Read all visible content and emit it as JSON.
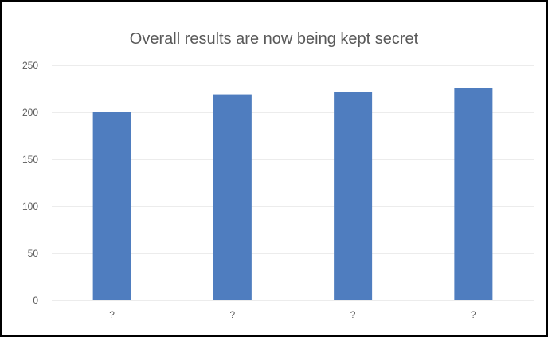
{
  "chart_data": {
    "type": "bar",
    "title": "Overall results are now being kept secret",
    "xlabel": "",
    "ylabel": "",
    "categories": [
      "?",
      "?",
      "?",
      "?"
    ],
    "values": [
      200,
      219,
      222,
      226
    ],
    "ylim": [
      0,
      250
    ],
    "yticks": [
      "0",
      "50",
      "100",
      "150",
      "200",
      "250"
    ],
    "grid": true,
    "legend": "none",
    "colors": {
      "bar": "#4f7dbf",
      "grid": "#d9d9d9",
      "text": "#595959",
      "frame": "#000000"
    }
  }
}
